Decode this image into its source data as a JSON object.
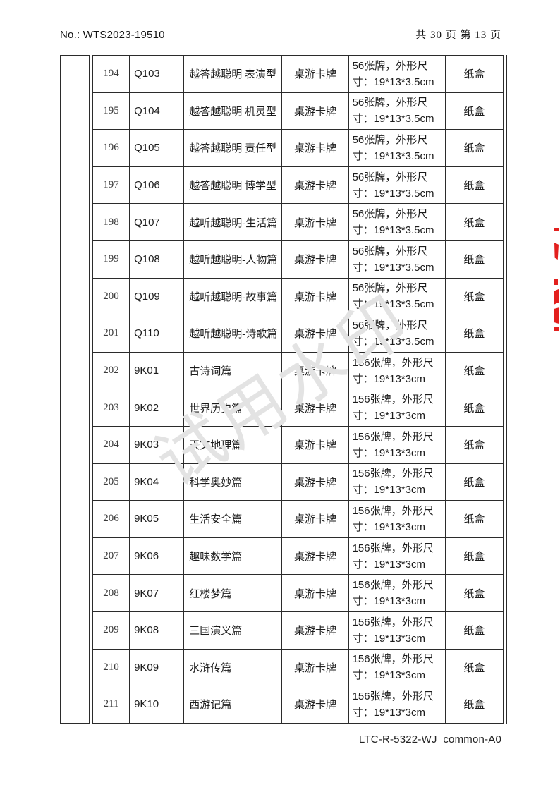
{
  "header": {
    "doc_no": "No.: WTS2023-19510",
    "pagination": "共 30 页 第 13 页"
  },
  "footer": {
    "code": "LTC-R-5322-WJ  common-A0"
  },
  "watermark": {
    "text": "试用水印"
  },
  "stamp": {
    "color": "#e3201e",
    "note": "red stamp fragments clipped at right page edge"
  },
  "table": {
    "columns": [
      "no",
      "code",
      "name",
      "type",
      "spec",
      "material"
    ],
    "rows": [
      {
        "no": "194",
        "code": "Q103",
        "name": "越答越聪明 表演型",
        "type": "桌游卡牌",
        "spec": "56张牌，外形尺\n寸：19*13*3.5cm",
        "material": "纸盒"
      },
      {
        "no": "195",
        "code": "Q104",
        "name": "越答越聪明 机灵型",
        "type": "桌游卡牌",
        "spec": "56张牌，外形尺\n寸：19*13*3.5cm",
        "material": "纸盒"
      },
      {
        "no": "196",
        "code": "Q105",
        "name": "越答越聪明 责任型",
        "type": "桌游卡牌",
        "spec": "56张牌，外形尺\n寸：19*13*3.5cm",
        "material": "纸盒"
      },
      {
        "no": "197",
        "code": "Q106",
        "name": "越答越聪明 博学型",
        "type": "桌游卡牌",
        "spec": "56张牌，外形尺\n寸：19*13*3.5cm",
        "material": "纸盒"
      },
      {
        "no": "198",
        "code": "Q107",
        "name": "越听越聪明-生活篇",
        "type": "桌游卡牌",
        "spec": "56张牌，外形尺\n寸：19*13*3.5cm",
        "material": "纸盒"
      },
      {
        "no": "199",
        "code": "Q108",
        "name": "越听越聪明-人物篇",
        "type": "桌游卡牌",
        "spec": "56张牌，外形尺\n寸：19*13*3.5cm",
        "material": "纸盒"
      },
      {
        "no": "200",
        "code": "Q109",
        "name": "越听越聪明-故事篇",
        "type": "桌游卡牌",
        "spec": "56张牌，外形尺\n寸：19*13*3.5cm",
        "material": "纸盒"
      },
      {
        "no": "201",
        "code": "Q110",
        "name": "越听越聪明-诗歌篇",
        "type": "桌游卡牌",
        "spec": "56张牌，外形尺\n寸：19*13*3.5cm",
        "material": "纸盒"
      },
      {
        "no": "202",
        "code": "9K01",
        "name": "古诗词篇",
        "type": "桌游卡牌",
        "spec": "156张牌，外形尺\n寸：19*13*3cm",
        "material": "纸盒"
      },
      {
        "no": "203",
        "code": "9K02",
        "name": "世界历史篇",
        "type": "桌游卡牌",
        "spec": "156张牌，外形尺\n寸：19*13*3cm",
        "material": "纸盒"
      },
      {
        "no": "204",
        "code": "9K03",
        "name": "天文地理篇",
        "type": "桌游卡牌",
        "spec": "156张牌，外形尺\n寸：19*13*3cm",
        "material": "纸盒"
      },
      {
        "no": "205",
        "code": "9K04",
        "name": "科学奥妙篇",
        "type": "桌游卡牌",
        "spec": "156张牌，外形尺\n寸：19*13*3cm",
        "material": "纸盒"
      },
      {
        "no": "206",
        "code": "9K05",
        "name": "生活安全篇",
        "type": "桌游卡牌",
        "spec": "156张牌，外形尺\n寸：19*13*3cm",
        "material": "纸盒"
      },
      {
        "no": "207",
        "code": "9K06",
        "name": "趣味数学篇",
        "type": "桌游卡牌",
        "spec": "156张牌，外形尺\n寸：19*13*3cm",
        "material": "纸盒"
      },
      {
        "no": "208",
        "code": "9K07",
        "name": "红楼梦篇",
        "type": "桌游卡牌",
        "spec": "156张牌，外形尺\n寸：19*13*3cm",
        "material": "纸盒"
      },
      {
        "no": "209",
        "code": "9K08",
        "name": "三国演义篇",
        "type": "桌游卡牌",
        "spec": "156张牌，外形尺\n寸：19*13*3cm",
        "material": "纸盒"
      },
      {
        "no": "210",
        "code": "9K09",
        "name": "水浒传篇",
        "type": "桌游卡牌",
        "spec": "156张牌，外形尺\n寸：19*13*3cm",
        "material": "纸盒"
      },
      {
        "no": "211",
        "code": "9K10",
        "name": "西游记篇",
        "type": "桌游卡牌",
        "spec": "156张牌，外形尺\n寸：19*13*3cm",
        "material": "纸盒"
      }
    ]
  }
}
